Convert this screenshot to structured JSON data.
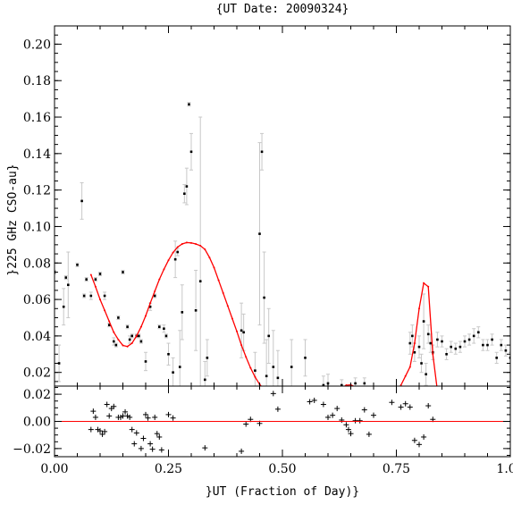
{
  "chart_data": [
    {
      "type": "scatter",
      "title": "{UT Date: 20090324}",
      "xlabel": "",
      "ylabel": "}225 GHz CSO-au}",
      "xlim": [
        0.0,
        1.0
      ],
      "ylim": [
        0.0125,
        0.21
      ],
      "yticks": [
        "0.02",
        "0.04",
        "0.06",
        "0.08",
        "0.10",
        "0.12",
        "0.14",
        "0.16",
        "0.18",
        "0.20"
      ],
      "series": [
        {
          "kind": "points-with-errorbars",
          "color": "#000000",
          "errorbar_color": "#c8c8c8",
          "x": [
            0.0,
            0.01,
            0.02,
            0.025,
            0.03,
            0.05,
            0.06,
            0.065,
            0.07,
            0.08,
            0.09,
            0.1,
            0.11,
            0.12,
            0.13,
            0.135,
            0.14,
            0.15,
            0.16,
            0.165,
            0.17,
            0.18,
            0.185,
            0.19,
            0.2,
            0.21,
            0.22,
            0.23,
            0.24,
            0.245,
            0.25,
            0.26,
            0.265,
            0.27,
            0.275,
            0.28,
            0.285,
            0.29,
            0.295,
            0.3,
            0.31,
            0.32,
            0.33,
            0.335,
            0.41,
            0.415,
            0.44,
            0.45,
            0.455,
            0.46,
            0.465,
            0.47,
            0.48,
            0.49,
            0.52,
            0.55,
            0.59,
            0.6,
            0.63,
            0.66,
            0.68,
            0.78,
            0.785,
            0.79,
            0.8,
            0.805,
            0.81,
            0.815,
            0.82,
            0.825,
            0.83,
            0.84,
            0.85,
            0.86,
            0.87,
            0.88,
            0.89,
            0.9,
            0.91,
            0.92,
            0.93,
            0.94,
            0.95,
            0.96,
            0.97,
            0.98,
            0.99,
            1.0
          ],
          "y": [
            0.075,
            0.025,
            0.056,
            0.072,
            0.068,
            0.079,
            0.114,
            0.062,
            0.071,
            0.062,
            0.071,
            0.074,
            0.062,
            0.046,
            0.037,
            0.035,
            0.05,
            0.075,
            0.045,
            0.038,
            0.04,
            0.04,
            0.04,
            0.037,
            0.026,
            0.056,
            0.062,
            0.045,
            0.044,
            0.04,
            0.03,
            0.02,
            0.082,
            0.086,
            0.023,
            0.053,
            0.118,
            0.122,
            0.167,
            0.141,
            0.054,
            0.07,
            0.016,
            0.028,
            0.043,
            0.042,
            0.021,
            0.096,
            0.141,
            0.061,
            0.018,
            0.04,
            0.023,
            0.017,
            0.023,
            0.028,
            0.013,
            0.014,
            0.013,
            0.014,
            0.014,
            0.036,
            0.04,
            0.031,
            0.034,
            0.025,
            0.048,
            0.019,
            0.041,
            0.036,
            0.031,
            0.038,
            0.037,
            0.03,
            0.034,
            0.033,
            0.034,
            0.037,
            0.038,
            0.04,
            0.042,
            0.035,
            0.035,
            0.038,
            0.028,
            0.035,
            0.032,
            0.028
          ],
          "err": [
            0.001,
            0.01,
            0.01,
            0.001,
            0.018,
            0.001,
            0.01,
            0.001,
            0.001,
            0.002,
            0.001,
            0.001,
            0.002,
            0.001,
            0.002,
            0.001,
            0.001,
            0.001,
            0.001,
            0.002,
            0.001,
            0.001,
            0.001,
            0.001,
            0.005,
            0.002,
            0.001,
            0.001,
            0.002,
            0.001,
            0.006,
            0.008,
            0.01,
            0.002,
            0.02,
            0.015,
            0.005,
            0.01,
            0.001,
            0.01,
            0.022,
            0.09,
            0.01,
            0.01,
            0.015,
            0.01,
            0.01,
            0.05,
            0.01,
            0.025,
            0.02,
            0.015,
            0.02,
            0.015,
            0.015,
            0.01,
            0.005,
            0.005,
            0.003,
            0.003,
            0.003,
            0.006,
            0.006,
            0.005,
            0.006,
            0.005,
            0.015,
            0.006,
            0.005,
            0.005,
            0.004,
            0.004,
            0.003,
            0.003,
            0.003,
            0.003,
            0.003,
            0.003,
            0.003,
            0.004,
            0.003,
            0.003,
            0.003,
            0.003,
            0.003,
            0.003,
            0.003,
            0.003
          ]
        },
        {
          "kind": "fit-curve",
          "color": "#ff0000",
          "segments": [
            {
              "x": [
                0.08,
                0.09,
                0.1,
                0.11,
                0.12,
                0.13,
                0.14,
                0.15,
                0.16,
                0.17,
                0.18,
                0.19,
                0.2,
                0.21,
                0.22,
                0.23,
                0.24,
                0.25,
                0.26,
                0.27,
                0.28,
                0.29,
                0.3,
                0.31,
                0.32,
                0.33,
                0.34,
                0.35,
                0.36,
                0.37,
                0.38,
                0.39,
                0.4,
                0.41,
                0.42,
                0.43,
                0.44,
                0.45,
                0.46,
                0.47,
                0.48,
                0.49
              ],
              "y": [
                0.0735,
                0.067,
                0.06,
                0.054,
                0.048,
                0.042,
                0.038,
                0.0348,
                0.0342,
                0.036,
                0.04,
                0.045,
                0.051,
                0.058,
                0.0645,
                0.071,
                0.0765,
                0.0815,
                0.0857,
                0.0887,
                0.0904,
                0.0912,
                0.091,
                0.0904,
                0.0895,
                0.0875,
                0.083,
                0.0775,
                0.0705,
                0.0635,
                0.0565,
                0.0495,
                0.0425,
                0.035,
                0.0285,
                0.0225,
                0.0175,
                0.0135,
                0.0105,
                0.008,
                0.006,
                0.004
              ]
            },
            {
              "x": [
                0.62,
                0.63,
                0.64,
                0.65,
                0.66,
                0.67,
                0.68
              ],
              "y": [
                0.009,
                0.0115,
                0.013,
                0.0132,
                0.012,
                0.0105,
                0.009
              ]
            },
            {
              "x": [
                0.74,
                0.75,
                0.76,
                0.77,
                0.78,
                0.79,
                0.8,
                0.81,
                0.82,
                0.83,
                0.84
              ],
              "y": [
                0.004,
                0.008,
                0.013,
                0.018,
                0.023,
                0.036,
                0.055,
                0.069,
                0.067,
                0.03,
                0.01
              ]
            }
          ]
        }
      ]
    },
    {
      "type": "scatter",
      "title": "",
      "xlabel": "}UT (Fraction of Day)}",
      "ylabel": "",
      "xlim": [
        0.0,
        1.0
      ],
      "ylim": [
        -0.026,
        0.026
      ],
      "xticks": [
        "0.00",
        "0.25",
        "0.50",
        "0.75",
        "1.00"
      ],
      "yticks": [
        "−0.02",
        "0.00",
        "0.02"
      ],
      "series": [
        {
          "kind": "residual-points",
          "color": "#000000",
          "x": [
            0.08,
            0.085,
            0.09,
            0.095,
            0.1,
            0.105,
            0.11,
            0.115,
            0.12,
            0.125,
            0.13,
            0.14,
            0.145,
            0.15,
            0.155,
            0.16,
            0.165,
            0.17,
            0.175,
            0.18,
            0.19,
            0.195,
            0.2,
            0.205,
            0.21,
            0.215,
            0.22,
            0.225,
            0.23,
            0.235,
            0.25,
            0.26,
            0.33,
            0.41,
            0.42,
            0.43,
            0.45,
            0.48,
            0.49,
            0.56,
            0.57,
            0.59,
            0.6,
            0.61,
            0.62,
            0.63,
            0.64,
            0.645,
            0.65,
            0.66,
            0.67,
            0.68,
            0.69,
            0.7,
            0.74,
            0.76,
            0.77,
            0.78,
            0.79,
            0.8,
            0.81,
            0.82,
            0.83
          ],
          "y": [
            -0.006,
            0.0075,
            0.003,
            -0.006,
            -0.007,
            -0.0095,
            -0.0075,
            0.0125,
            0.004,
            0.0095,
            0.011,
            0.003,
            0.003,
            0.004,
            0.007,
            0.004,
            0.003,
            -0.006,
            -0.0165,
            -0.0085,
            -0.02,
            -0.0125,
            0.005,
            0.0025,
            -0.0165,
            -0.0205,
            0.003,
            -0.009,
            -0.0115,
            -0.021,
            0.005,
            0.0025,
            -0.0195,
            -0.022,
            -0.002,
            0.0015,
            -0.0015,
            0.0205,
            0.009,
            0.0145,
            0.0155,
            0.0125,
            0.003,
            0.0045,
            0.0095,
            0.001,
            -0.0025,
            -0.006,
            -0.009,
            0.0005,
            0.0005,
            0.0085,
            -0.0095,
            0.0045,
            0.014,
            0.0105,
            0.013,
            0.0105,
            -0.014,
            -0.017,
            -0.0115,
            0.0115,
            0.0015
          ]
        },
        {
          "kind": "reference-line",
          "color": "#ff0000",
          "y": 0.0
        }
      ]
    }
  ]
}
